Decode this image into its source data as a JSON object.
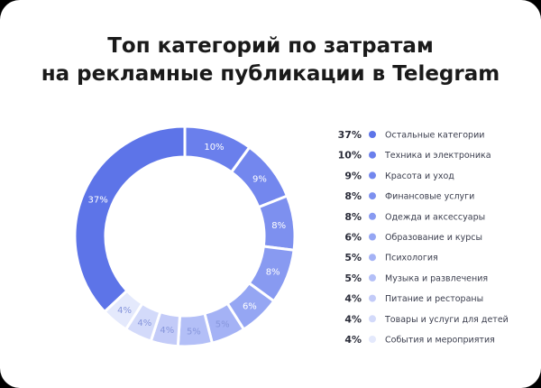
{
  "chart_data": {
    "type": "donut",
    "title": [
      "Топ категорий по затратам",
      "на рекламные публикации в Telegram"
    ],
    "categories": [
      "Остальные категории",
      "Техника и электроника",
      "Красота и уход",
      "Финансовые услуги",
      "Одежда и аксессуары",
      "Образование и курсы",
      "Психология",
      "Музыка и развлечения",
      "Питание и рестораны",
      "Товары и услуги для детей",
      "События и мероприятия"
    ],
    "values": [
      37,
      10,
      9,
      8,
      8,
      6,
      5,
      5,
      4,
      4,
      4
    ],
    "value_labels": [
      "37%",
      "10%",
      "9%",
      "8%",
      "8%",
      "6%",
      "5%",
      "5%",
      "4%",
      "4%",
      "4%"
    ],
    "colors": [
      "#5d74e8",
      "#6a7fec",
      "#7387ee",
      "#7d90ef",
      "#889af1",
      "#95a6f3",
      "#a4b2f5",
      "#b3bff7",
      "#c3cbf8",
      "#d3dafa",
      "#e4e9fc"
    ]
  }
}
